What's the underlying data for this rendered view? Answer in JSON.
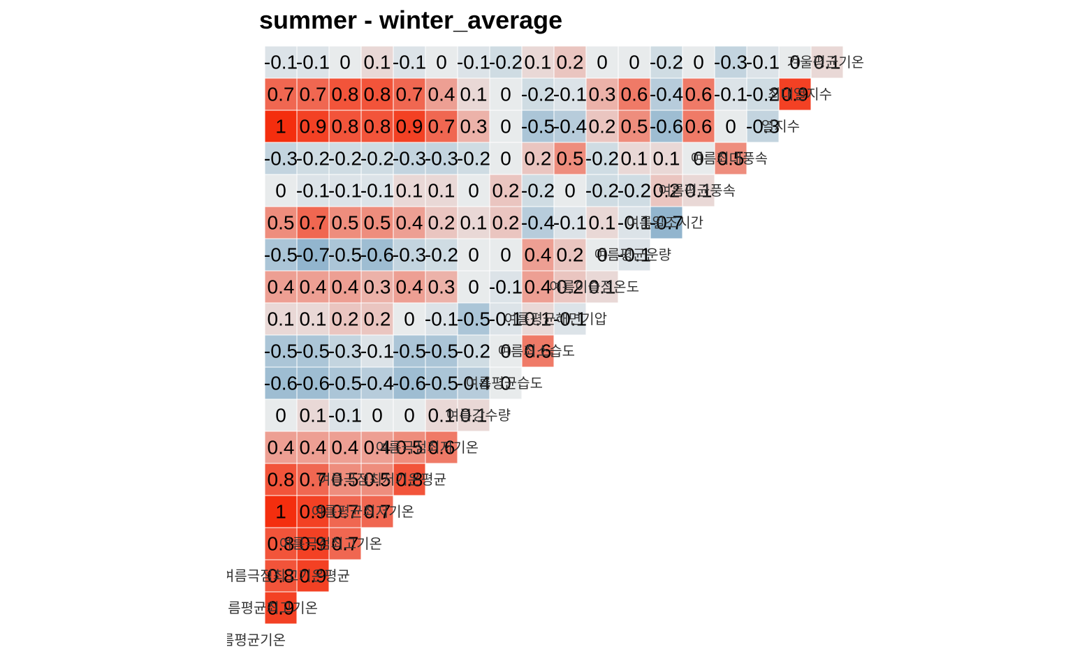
{
  "title": "summer - winter_average",
  "chart_data": {
    "type": "heatmap",
    "title": "summer - winter_average",
    "grid": false,
    "variables": [
      "여름평균기온",
      "여름평균최고기온",
      "여름극점최고기온평균",
      "여름극점최고기온",
      "여름평균최저기온",
      "여름극점최저기온평균",
      "여름극점최저기온",
      "여름강수량",
      "여름평균습도",
      "여름최소습도",
      "여름평균해면기압",
      "여름이슬점온도",
      "여름평균운량",
      "여름일조시간",
      "여름평균풍속",
      "여름최대풍속",
      "열지수",
      "최대열지수",
      "겨울평균기온"
    ],
    "value_labels": [
      [],
      [
        "0.9"
      ],
      [
        "0.8",
        "0.9"
      ],
      [
        "0.8",
        "0.9",
        "0.7"
      ],
      [
        "1",
        "0.9",
        "0.7",
        "0.7"
      ],
      [
        "0.8",
        "0.7",
        "0.5",
        "0.5",
        "0.8"
      ],
      [
        "0.4",
        "0.4",
        "0.4",
        "0.4",
        "0.5",
        "0.6"
      ],
      [
        "0",
        "0.1",
        "-0.1",
        "0",
        "0",
        "0.1",
        "0.1"
      ],
      [
        "-0.6",
        "-0.6",
        "-0.5",
        "-0.4",
        "-0.6",
        "-0.5",
        "-0.4",
        "0"
      ],
      [
        "-0.5",
        "-0.5",
        "-0.3",
        "-0.1",
        "-0.5",
        "-0.5",
        "-0.2",
        "0",
        "0.6"
      ],
      [
        "0.1",
        "0.1",
        "0.2",
        "0.2",
        "0",
        "-0.1",
        "-0.5",
        "-0.1",
        "0.1",
        "-0.1"
      ],
      [
        "0.4",
        "0.4",
        "0.4",
        "0.3",
        "0.4",
        "0.3",
        "0",
        "-0.1",
        "0.4",
        "0.2",
        "0.1"
      ],
      [
        "-0.5",
        "-0.7",
        "-0.5",
        "-0.6",
        "-0.3",
        "-0.2",
        "0",
        "0",
        "0.4",
        "0.2",
        "0",
        "-0.1"
      ],
      [
        "0.5",
        "0.7",
        "0.5",
        "0.5",
        "0.4",
        "0.2",
        "0.1",
        "0.2",
        "-0.4",
        "-0.1",
        "0.1",
        "-0.1",
        "-0.7"
      ],
      [
        "0",
        "-0.1",
        "-0.1",
        "-0.1",
        "0.1",
        "0.1",
        "0",
        "0.2",
        "-0.2",
        "0",
        "-0.2",
        "-0.2",
        "0.2",
        "0.1"
      ],
      [
        "-0.3",
        "-0.2",
        "-0.2",
        "-0.2",
        "-0.3",
        "-0.3",
        "-0.2",
        "0",
        "0.2",
        "0.5",
        "-0.2",
        "0.1",
        "0.1",
        "0",
        "0.5"
      ],
      [
        "1",
        "0.9",
        "0.8",
        "0.8",
        "0.9",
        "0.7",
        "0.3",
        "0",
        "-0.5",
        "-0.4",
        "0.2",
        "0.5",
        "-0.6",
        "0.6",
        "0",
        "-0.3"
      ],
      [
        "0.7",
        "0.7",
        "0.8",
        "0.8",
        "0.7",
        "0.4",
        "0.1",
        "0",
        "-0.2",
        "-0.1",
        "0.3",
        "0.6",
        "-0.4",
        "0.6",
        "-0.1",
        "-0.2",
        "0.9"
      ],
      [
        "-0.1",
        "-0.1",
        "0",
        "0.1",
        "-0.1",
        "0",
        "-0.1",
        "-0.2",
        "0.1",
        "0.2",
        "0",
        "0",
        "-0.2",
        "0",
        "-0.3",
        "-0.1",
        "0",
        "0.1"
      ]
    ],
    "color_scale": {
      "low": "#6D9EC1",
      "mid": "#E8EBEC",
      "high": "#F42E0E",
      "min": -1,
      "max": 1
    }
  }
}
